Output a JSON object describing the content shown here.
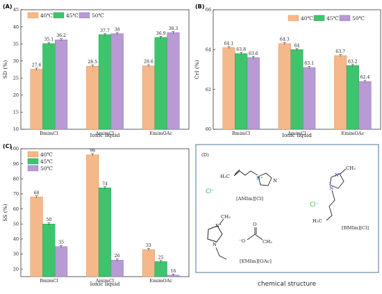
{
  "colors": {
    "s40": "#f5b88a",
    "s45": "#3ec46d",
    "s50": "#b89ad4",
    "chloride": "#2db84a",
    "atom_n": "#2040c0"
  },
  "chart_data": [
    {
      "type": "bar",
      "panel": "(A)",
      "categories": [
        "BmimCl",
        "AmimCl",
        "EmimOAc"
      ],
      "series": [
        {
          "name": "40℃",
          "values": [
            27.6,
            28.5,
            28.6
          ]
        },
        {
          "name": "45℃",
          "values": [
            35.1,
            37.7,
            36.9
          ]
        },
        {
          "name": "50℃",
          "values": [
            36.2,
            38.0,
            38.3
          ]
        }
      ],
      "value_labels": [
        [
          "27.6",
          "28.5",
          "28.6"
        ],
        [
          "35.1",
          "37.7",
          "36.9"
        ],
        [
          "36.2",
          "38",
          "38.3"
        ]
      ],
      "xlabel": "Ionic liquid",
      "ylabel": "SD (%)",
      "ylim": [
        10,
        45
      ],
      "yticks": [
        10,
        15,
        20,
        25,
        30,
        35,
        40,
        45
      ],
      "legend": "top-left"
    },
    {
      "type": "bar",
      "panel": "(B)",
      "categories": [
        "BmimCl",
        "AmimCl",
        "EmimOAc"
      ],
      "series": [
        {
          "name": "40℃",
          "values": [
            64.1,
            64.3,
            63.7
          ]
        },
        {
          "name": "45℃",
          "values": [
            63.8,
            64.0,
            63.2
          ]
        },
        {
          "name": "50℃",
          "values": [
            63.6,
            63.1,
            62.4
          ]
        }
      ],
      "value_labels": [
        [
          "64.1",
          "64.3",
          "63.7"
        ],
        [
          "63.8",
          "64",
          "63.2"
        ],
        [
          "63.6",
          "63.1",
          "62.4"
        ]
      ],
      "xlabel": "Ionic liquid",
      "ylabel": "CrI (%)",
      "ylim": [
        60,
        66
      ],
      "yticks": [
        60,
        62,
        64,
        66
      ],
      "legend": "top-right"
    },
    {
      "type": "bar",
      "panel": "(C)",
      "categories": [
        "BmimCl",
        "AmimCl",
        "EmimOAc"
      ],
      "series": [
        {
          "name": "40℃",
          "values": [
            68,
            96,
            33
          ]
        },
        {
          "name": "45℃",
          "values": [
            50,
            74,
            25
          ]
        },
        {
          "name": "50℃",
          "values": [
            35,
            26,
            16
          ]
        }
      ],
      "value_labels": [
        [
          "68",
          "96",
          "33"
        ],
        [
          "50",
          "74",
          "25"
        ],
        [
          "35",
          "26",
          "16"
        ]
      ],
      "xlabel": "Ionic liquid",
      "ylabel": "SS (%)",
      "ylim": [
        15,
        100
      ],
      "yticks": [
        20,
        30,
        40,
        50,
        60,
        70,
        80,
        90,
        100
      ],
      "legend": "top-left"
    }
  ],
  "structures": {
    "panel": "(D)",
    "caption": "chemical structure",
    "amim_label": "[AMIm][Cl]",
    "bmim_label": "[BMIm][Cl]",
    "emim_label": "[EMIm][OAc]",
    "chloride_1": "Cl⁻",
    "chloride_2": "Cl⁻",
    "allyl_h2c": "H₂C",
    "n_plus": "N⁺",
    "n_plain": "N",
    "ch3": "CH₃",
    "h3c": "H₃C",
    "o_minus": "⁻O",
    "o": "O"
  }
}
